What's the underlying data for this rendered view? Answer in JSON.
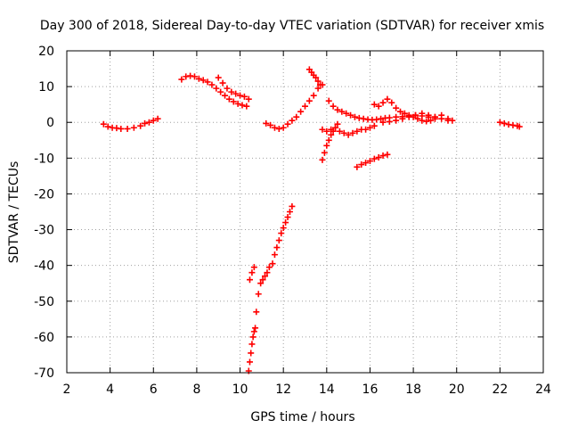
{
  "chart_data": {
    "type": "scatter",
    "title": "Day 300 of 2018, Sidereal Day-to-day VTEC variation (SDTVAR) for receiver xmis",
    "xlabel": "GPS time / hours",
    "ylabel": "SDTVAR / TECUs",
    "xlim": [
      2,
      24
    ],
    "ylim": [
      -70,
      20
    ],
    "xticks": [
      2,
      4,
      6,
      8,
      10,
      12,
      14,
      16,
      18,
      20,
      22,
      24
    ],
    "yticks": [
      -70,
      -60,
      -50,
      -40,
      -30,
      -20,
      -10,
      0,
      10,
      20
    ],
    "grid": true,
    "marker": "plus",
    "color": "#ff0000",
    "series": [
      {
        "name": "seg-1",
        "x": [
          3.7,
          3.9,
          4.1,
          4.3,
          4.5,
          4.8,
          5.1,
          5.4,
          5.6,
          5.8,
          6.0,
          6.2
        ],
        "y": [
          -0.5,
          -1.2,
          -1.5,
          -1.6,
          -1.8,
          -1.8,
          -1.5,
          -1.0,
          -0.3,
          0.0,
          0.5,
          1.0
        ]
      },
      {
        "name": "seg-2",
        "x": [
          7.3,
          7.5,
          7.7,
          7.9,
          8.1,
          8.3,
          8.5,
          8.7,
          8.9,
          9.1,
          9.3,
          9.5,
          9.7,
          9.9,
          10.1,
          10.3
        ],
        "y": [
          12.0,
          12.8,
          13.0,
          12.8,
          12.2,
          11.8,
          11.3,
          10.5,
          9.5,
          8.5,
          7.5,
          6.5,
          5.8,
          5.2,
          4.8,
          4.5
        ]
      },
      {
        "name": "seg-3",
        "x": [
          9.0,
          9.2,
          9.4,
          9.6,
          9.8,
          10.0,
          10.2,
          10.4
        ],
        "y": [
          12.5,
          11.0,
          9.5,
          8.5,
          8.0,
          7.5,
          7.2,
          6.5
        ]
      },
      {
        "name": "seg-4",
        "x": [
          10.4,
          10.45,
          10.5,
          10.55,
          10.6,
          10.65,
          10.7
        ],
        "y": [
          -69.5,
          -67.0,
          -64.5,
          -62.0,
          -60.0,
          -58.5,
          -57.5
        ]
      },
      {
        "name": "seg-5",
        "x": [
          10.45,
          10.55,
          10.65
        ],
        "y": [
          -44.0,
          -42.0,
          -40.5
        ]
      },
      {
        "name": "seg-6",
        "x": [
          10.75,
          10.85,
          10.95,
          11.05,
          11.15,
          11.25,
          11.35,
          11.5,
          11.6,
          11.7,
          11.8,
          11.9,
          12.0,
          12.1,
          12.2,
          12.3,
          12.4
        ],
        "y": [
          -53.0,
          -48.0,
          -45.0,
          -44.0,
          -43.0,
          -42.0,
          -40.5,
          -39.5,
          -37.0,
          -35.0,
          -33.0,
          -31.0,
          -29.5,
          -28.0,
          -26.5,
          -25.0,
          -23.5
        ]
      },
      {
        "name": "seg-7",
        "x": [
          11.2,
          11.4,
          11.6,
          11.8,
          12.0,
          12.2,
          12.4,
          12.6,
          12.8,
          13.0,
          13.2,
          13.4,
          13.6,
          13.8
        ],
        "y": [
          -0.3,
          -0.8,
          -1.5,
          -1.8,
          -1.5,
          -0.5,
          0.5,
          1.5,
          3.0,
          4.5,
          6.0,
          7.5,
          9.5,
          10.5
        ]
      },
      {
        "name": "seg-8",
        "x": [
          13.2,
          13.3,
          13.4,
          13.5,
          13.6,
          13.7
        ],
        "y": [
          14.8,
          14.0,
          13.2,
          12.5,
          11.5,
          10.5
        ]
      },
      {
        "name": "seg-9",
        "x": [
          13.8,
          13.9,
          14.0,
          14.1,
          14.2,
          14.3,
          14.4,
          14.5
        ],
        "y": [
          -10.5,
          -8.5,
          -6.5,
          -5.0,
          -3.5,
          -2.5,
          -1.5,
          -0.5
        ]
      },
      {
        "name": "seg-10",
        "x": [
          13.8,
          14.0,
          14.2,
          14.4,
          14.6,
          14.8,
          15.0,
          15.2,
          15.4,
          15.6,
          15.8,
          16.0,
          16.2
        ],
        "y": [
          -2.0,
          -2.5,
          -2.0,
          -1.5,
          -2.5,
          -3.0,
          -3.5,
          -3.0,
          -2.5,
          -2.0,
          -2.0,
          -1.5,
          -1.0
        ]
      },
      {
        "name": "seg-11",
        "x": [
          14.1,
          14.3,
          14.5,
          14.7,
          14.9,
          15.1,
          15.3,
          15.5,
          15.7,
          15.9,
          16.1,
          16.3,
          16.5,
          16.7,
          16.9,
          17.2,
          17.5,
          17.8,
          18.1,
          18.4,
          18.7,
          19.0,
          19.3,
          19.6
        ],
        "y": [
          6.0,
          4.5,
          3.5,
          3.0,
          2.5,
          2.0,
          1.5,
          1.2,
          1.0,
          0.8,
          0.7,
          0.8,
          1.0,
          1.2,
          1.3,
          1.5,
          1.6,
          1.8,
          2.0,
          1.8,
          1.5,
          1.5,
          1.0,
          0.5
        ]
      },
      {
        "name": "seg-12",
        "x": [
          16.2,
          16.4,
          16.6,
          16.8,
          17.0,
          17.2,
          17.4,
          17.6,
          17.8,
          18.0,
          18.2,
          18.4,
          18.6,
          18.8,
          19.0
        ],
        "y": [
          5.0,
          4.5,
          5.5,
          6.5,
          5.5,
          4.0,
          3.0,
          2.5,
          2.0,
          1.5,
          1.0,
          0.5,
          0.3,
          0.5,
          1.0
        ]
      },
      {
        "name": "seg-13",
        "x": [
          16.6,
          16.9,
          17.2,
          17.5,
          17.8,
          18.1,
          18.4,
          18.7,
          19.0,
          19.3,
          19.6,
          19.8
        ],
        "y": [
          0.0,
          0.2,
          0.5,
          1.0,
          1.5,
          2.0,
          2.5,
          2.0,
          1.5,
          2.0,
          1.0,
          0.5
        ]
      },
      {
        "name": "seg-14",
        "x": [
          15.4,
          15.6,
          15.8,
          16.0,
          16.2,
          16.4,
          16.6,
          16.8
        ],
        "y": [
          -12.5,
          -11.8,
          -11.3,
          -10.8,
          -10.2,
          -9.8,
          -9.3,
          -9.0
        ]
      },
      {
        "name": "seg-15",
        "x": [
          22.0,
          22.2,
          22.4,
          22.6,
          22.8,
          22.9
        ],
        "y": [
          0.0,
          -0.3,
          -0.6,
          -0.8,
          -1.0,
          -1.2
        ]
      }
    ]
  }
}
